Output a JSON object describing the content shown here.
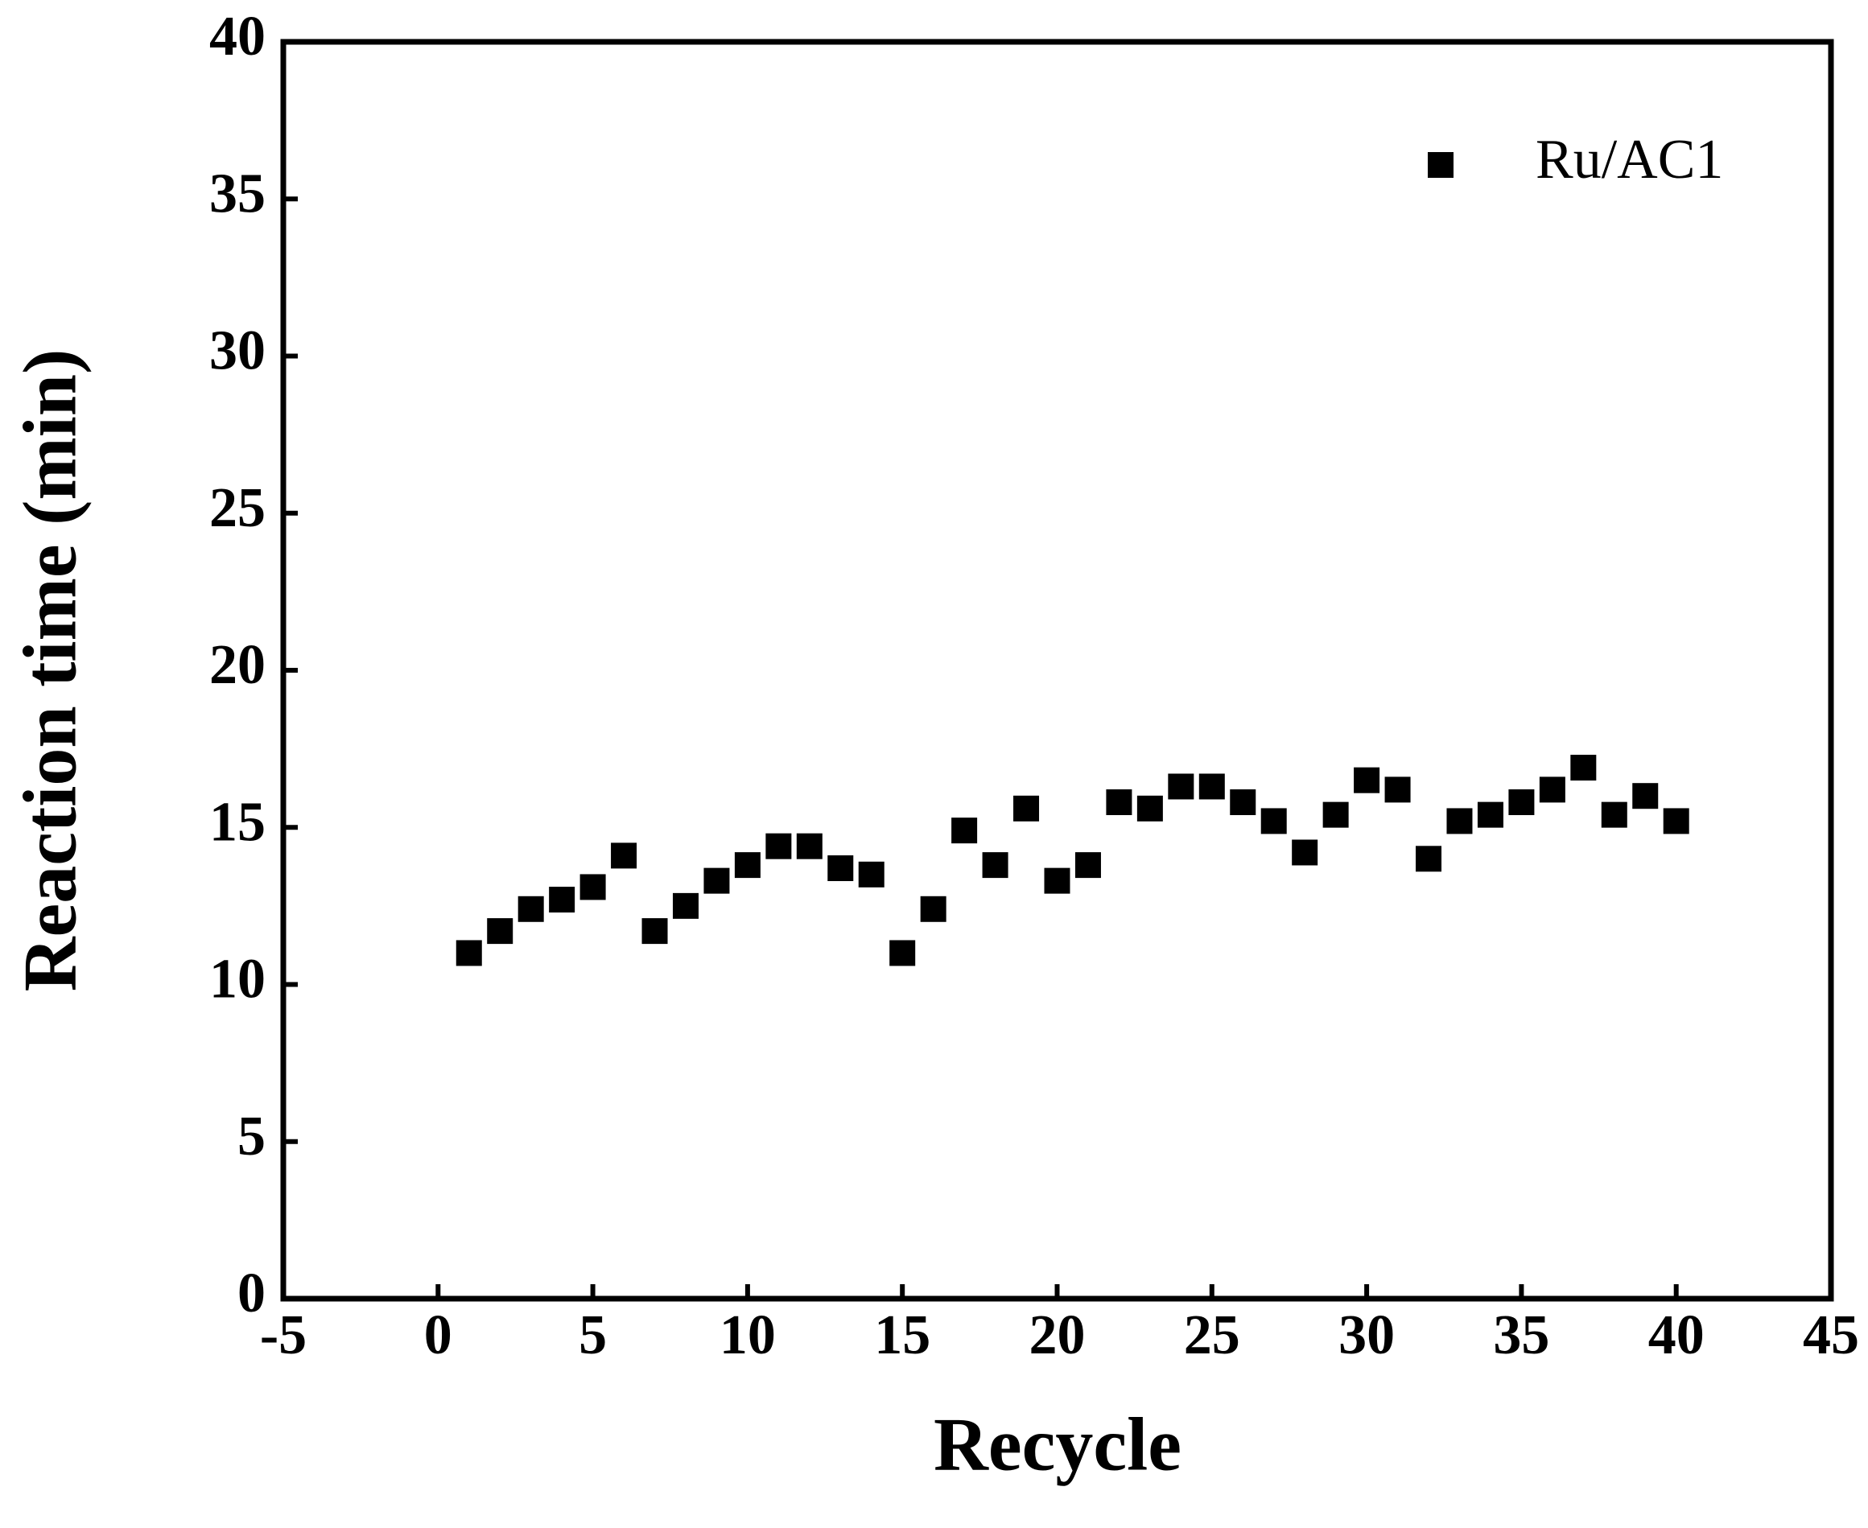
{
  "chart_data": {
    "type": "scatter",
    "xlabel": "Recycle",
    "ylabel": "Reaction time (min)",
    "series": [
      {
        "name": "Ru/AC1",
        "color": "#000000",
        "x": [
          1,
          2,
          3,
          4,
          5,
          6,
          7,
          8,
          9,
          10,
          11,
          12,
          13,
          14,
          15,
          16,
          17,
          18,
          19,
          20,
          21,
          22,
          23,
          24,
          25,
          26,
          27,
          28,
          29,
          30,
          31,
          32,
          33,
          34,
          35,
          36,
          37,
          38,
          39,
          40
        ],
        "values": [
          11.0,
          11.7,
          12.4,
          12.7,
          13.1,
          14.1,
          11.7,
          12.5,
          13.3,
          13.8,
          14.4,
          14.4,
          13.7,
          13.5,
          11.0,
          12.4,
          14.9,
          13.8,
          15.6,
          13.3,
          13.8,
          15.8,
          15.6,
          16.3,
          16.3,
          15.8,
          15.2,
          14.2,
          15.4,
          16.5,
          16.2,
          14.0,
          15.2,
          15.4,
          15.8,
          16.2,
          16.9,
          15.4,
          16.0,
          15.2
        ]
      }
    ],
    "xlim": [
      -5,
      45
    ],
    "xticks": [
      -5,
      0,
      5,
      10,
      15,
      20,
      25,
      30,
      35,
      40,
      45
    ],
    "ylim": [
      0,
      40
    ],
    "yticks": [
      0,
      5,
      10,
      15,
      20,
      25,
      30,
      35,
      40
    ],
    "legend": "upper-right",
    "grid": false
  }
}
